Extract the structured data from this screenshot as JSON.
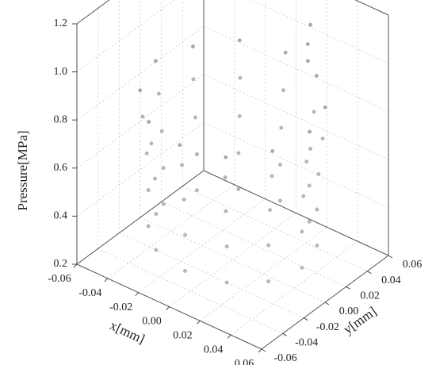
{
  "chart_data": {
    "type": "scatter3d",
    "zlabel": "Pressure[MPa]",
    "xlabel": "x[mm]",
    "ylabel": "y[mm]",
    "xlim": [
      -0.06,
      0.06
    ],
    "ylim": [
      -0.06,
      0.06
    ],
    "zlim": [
      0.2,
      1.2
    ],
    "xticks": [
      -0.06,
      -0.04,
      -0.02,
      {
        "value": 0,
        "label": "0.00"
      },
      0.02,
      0.04,
      0.06
    ],
    "yticks": [
      -0.06,
      -0.04,
      -0.02,
      {
        "value": 0,
        "label": "0.00"
      },
      0.02,
      0.04,
      0.06
    ],
    "zticks": [
      0.2,
      0.4,
      0.6,
      0.8,
      {
        "value": 1.0,
        "label": "1.0"
      },
      1.2
    ],
    "grid": true,
    "series": [
      {
        "color": "#b8b8b8",
        "x": [
          0.045,
          0.039,
          0.023,
          0,
          -0.023,
          -0.039,
          -0.045,
          -0.039,
          -0.023,
          0,
          0.023,
          0.039
        ],
        "y": [
          0,
          0.023,
          0.039,
          0.045,
          0.039,
          0.023,
          0,
          -0.023,
          -0.039,
          -0.045,
          -0.039,
          -0.023
        ],
        "z": [
          0.3,
          0.3,
          0.3,
          0.3,
          0.3,
          0.3,
          0.3,
          0.3,
          0.3,
          0.3,
          0.3,
          0.3
        ]
      },
      {
        "color": "#b8b8b8",
        "x": [
          0.045,
          0.039,
          0.023,
          0,
          -0.023,
          -0.039,
          -0.045,
          -0.039,
          -0.023,
          0,
          0.023,
          0.039
        ],
        "y": [
          0,
          0.023,
          0.039,
          0.045,
          0.039,
          0.023,
          0,
          -0.023,
          -0.039,
          -0.045,
          -0.039,
          -0.023
        ],
        "z": [
          0.45,
          0.45,
          0.45,
          0.45,
          0.45,
          0.45,
          0.45,
          0.45,
          0.45,
          0.45,
          0.45,
          0.45
        ]
      },
      {
        "color": "#b8b8b8",
        "x": [
          0.046,
          0.04,
          0.023,
          0,
          -0.023,
          -0.04,
          -0.046,
          -0.04,
          -0.023,
          0,
          0.023,
          0.04
        ],
        "y": [
          0,
          0.023,
          0.04,
          0.046,
          0.04,
          0.023,
          0,
          -0.023,
          -0.04,
          -0.046,
          -0.04,
          -0.023
        ],
        "z": [
          0.6,
          0.6,
          0.6,
          0.6,
          0.6,
          0.6,
          0.6,
          0.6,
          0.6,
          0.6,
          0.6,
          0.6
        ]
      },
      {
        "color": "#b8b8b8",
        "x": [
          0.048,
          0.042,
          0.024,
          0,
          -0.024,
          -0.042,
          -0.048,
          -0.042,
          -0.024,
          0,
          0.024,
          0.042
        ],
        "y": [
          0,
          0.024,
          0.042,
          0.048,
          0.042,
          0.024,
          0,
          -0.024,
          -0.042,
          -0.048,
          -0.042,
          -0.024
        ],
        "z": [
          0.75,
          0.75,
          0.75,
          0.75,
          0.75,
          0.75,
          0.75,
          0.75,
          0.75,
          0.75,
          0.75,
          0.75
        ]
      },
      {
        "color": "#a8a8a8",
        "x": [
          0.05,
          0.043,
          0.025,
          0,
          -0.025,
          -0.043,
          -0.05,
          -0.043,
          -0.025,
          0,
          0.025,
          0.043
        ],
        "y": [
          0,
          0.025,
          0.043,
          0.05,
          0.043,
          0.025,
          0,
          -0.025,
          -0.043,
          -0.05,
          -0.043,
          -0.025
        ],
        "z": [
          0.88,
          0.88,
          0.9,
          0.9,
          0.9,
          0.88,
          0.88,
          0.86,
          0.84,
          0.84,
          0.84,
          0.86
        ]
      },
      {
        "color": "#a8a8a8",
        "x": [
          0.02,
          0.02,
          0.021
        ],
        "y": [
          0.042,
          0.042,
          0.043
        ],
        "z": [
          0.95,
          1.02,
          1.1
        ]
      }
    ]
  }
}
